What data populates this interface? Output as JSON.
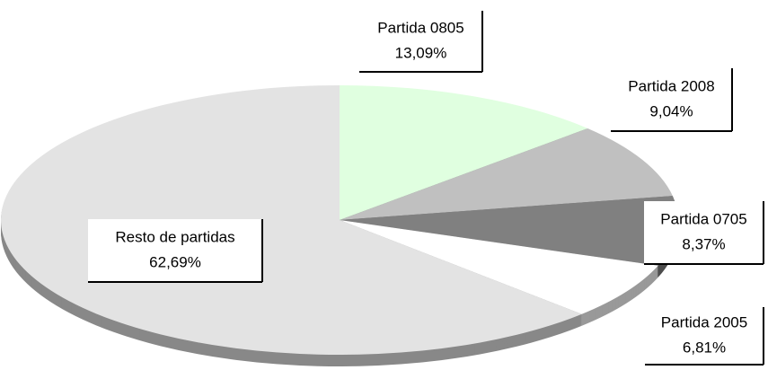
{
  "chart_data": {
    "type": "pie",
    "categories": [
      "Partida 0805",
      "Partida 2008",
      "Partida 0705",
      "Partida 2005",
      "Resto de partidas"
    ],
    "values": [
      13.09,
      9.04,
      8.37,
      6.81,
      62.69
    ],
    "value_labels": [
      "13,09%",
      "9,04%",
      "8,37%",
      "6,81%",
      "62,69%"
    ],
    "colors": [
      "#e0ffe0",
      "#c0c0c0",
      "#808080",
      "#ffffff",
      "#e3e3e3"
    ]
  }
}
